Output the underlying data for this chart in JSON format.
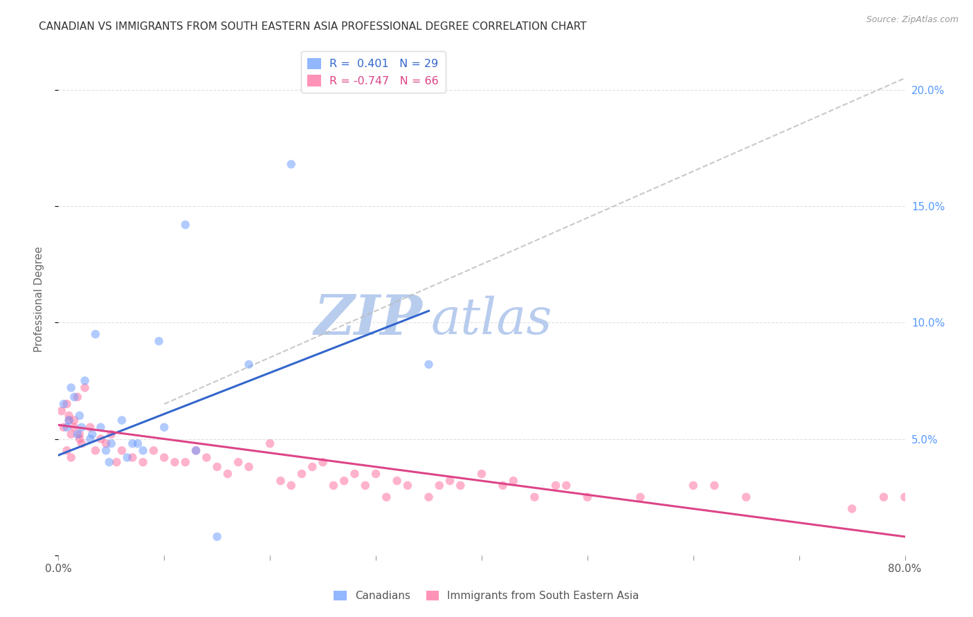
{
  "title": "CANADIAN VS IMMIGRANTS FROM SOUTH EASTERN ASIA PROFESSIONAL DEGREE CORRELATION CHART",
  "source": "Source: ZipAtlas.com",
  "ylabel": "Professional Degree",
  "x_ticks": [
    0.0,
    10.0,
    20.0,
    30.0,
    40.0,
    50.0,
    60.0,
    70.0,
    80.0
  ],
  "y_ticks": [
    0.0,
    5.0,
    10.0,
    15.0,
    20.0
  ],
  "x_tick_labels": [
    "0.0%",
    "",
    "",
    "",
    "",
    "",
    "",
    "",
    "80.0%"
  ],
  "y_tick_labels": [
    "",
    "5.0%",
    "10.0%",
    "15.0%",
    "20.0%"
  ],
  "xlim": [
    0.0,
    80.0
  ],
  "ylim": [
    0.0,
    22.0
  ],
  "legend_entries": [
    {
      "label": "R =  0.401   N = 29",
      "color": "#6699ff"
    },
    {
      "label": "R = -0.747   N = 66",
      "color": "#ff6699"
    }
  ],
  "canadians_x": [
    0.5,
    0.8,
    1.0,
    1.2,
    1.5,
    1.8,
    2.0,
    2.2,
    2.5,
    3.0,
    3.5,
    4.0,
    4.5,
    5.0,
    6.0,
    7.0,
    8.0,
    9.5,
    12.0,
    15.0,
    22.0,
    35.0,
    3.2,
    4.8,
    6.5,
    7.5,
    13.0,
    10.0,
    18.0
  ],
  "canadians_y": [
    6.5,
    5.5,
    5.8,
    7.2,
    6.8,
    5.2,
    6.0,
    5.5,
    7.5,
    5.0,
    9.5,
    5.5,
    4.5,
    4.8,
    5.8,
    4.8,
    4.5,
    9.2,
    14.2,
    0.8,
    16.8,
    8.2,
    5.2,
    4.0,
    4.2,
    4.8,
    4.5,
    5.5,
    8.2
  ],
  "immigrants_x": [
    0.3,
    0.5,
    0.8,
    1.0,
    1.2,
    1.5,
    1.8,
    2.0,
    2.2,
    2.5,
    0.8,
    1.0,
    1.2,
    1.5,
    2.0,
    3.0,
    3.5,
    4.0,
    4.5,
    5.0,
    5.5,
    6.0,
    7.0,
    8.0,
    9.0,
    10.0,
    12.0,
    13.0,
    14.0,
    15.0,
    16.0,
    17.0,
    18.0,
    20.0,
    21.0,
    22.0,
    23.0,
    24.0,
    25.0,
    26.0,
    27.0,
    28.0,
    29.0,
    30.0,
    31.0,
    32.0,
    33.0,
    35.0,
    36.0,
    37.0,
    38.0,
    40.0,
    42.0,
    43.0,
    45.0,
    47.0,
    48.0,
    50.0,
    55.0,
    60.0,
    62.0,
    65.0,
    75.0,
    78.0,
    80.0,
    11.0
  ],
  "immigrants_y": [
    6.2,
    5.5,
    6.5,
    5.8,
    5.2,
    5.5,
    6.8,
    5.0,
    4.8,
    7.2,
    4.5,
    6.0,
    4.2,
    5.8,
    5.2,
    5.5,
    4.5,
    5.0,
    4.8,
    5.2,
    4.0,
    4.5,
    4.2,
    4.0,
    4.5,
    4.2,
    4.0,
    4.5,
    4.2,
    3.8,
    3.5,
    4.0,
    3.8,
    4.8,
    3.2,
    3.0,
    3.5,
    3.8,
    4.0,
    3.0,
    3.2,
    3.5,
    3.0,
    3.5,
    2.5,
    3.2,
    3.0,
    2.5,
    3.0,
    3.2,
    3.0,
    3.5,
    3.0,
    3.2,
    2.5,
    3.0,
    3.0,
    2.5,
    2.5,
    3.0,
    3.0,
    2.5,
    2.0,
    2.5,
    2.5,
    4.0
  ],
  "canadian_color": "#6699ff",
  "immigrant_color": "#ff6699",
  "canadian_line_color": "#3366cc",
  "immigrant_line_color": "#dd4488",
  "dashed_line_color": "#bbbbbb",
  "watermark_text1": "ZIP",
  "watermark_text2": "atlas",
  "watermark_color1": "#b8ccee",
  "watermark_color2": "#b8ccee",
  "background_color": "#ffffff",
  "grid_color": "#cccccc",
  "title_color": "#333333",
  "axis_label_color": "#666666",
  "tick_color_right": "#5599ff",
  "marker_size": 9,
  "marker_alpha": 0.5,
  "line_width": 2.2,
  "canadian_line_x0": 0.0,
  "canadian_line_y0": 4.3,
  "canadian_line_x1": 35.0,
  "canadian_line_y1": 10.5,
  "immigrant_line_x0": 0.0,
  "immigrant_line_y0": 5.6,
  "immigrant_line_x1": 80.0,
  "immigrant_line_y1": 0.8,
  "dashed_line_x0": 10.0,
  "dashed_line_y0": 6.5,
  "dashed_line_x1": 80.0,
  "dashed_line_y1": 20.5
}
